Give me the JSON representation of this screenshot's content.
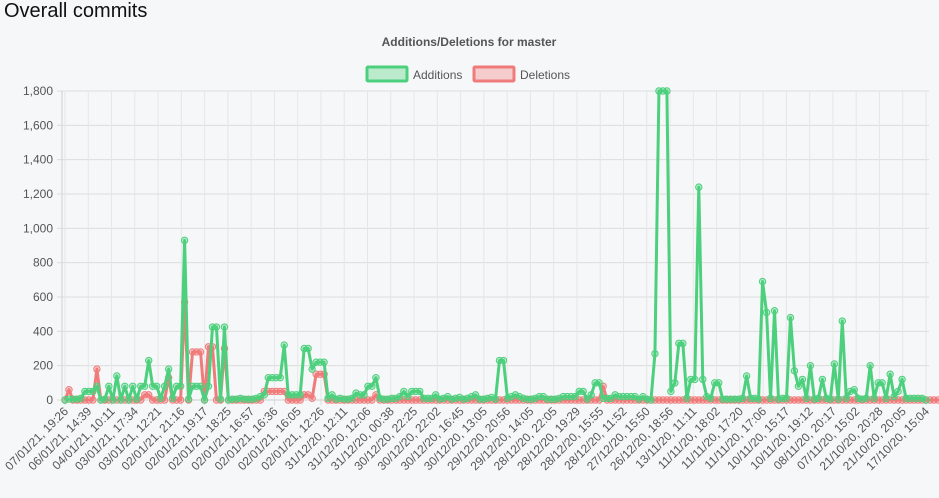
{
  "page": {
    "title": "Overall commits"
  },
  "chart_data": {
    "type": "line",
    "title": "Additions/Deletions for master",
    "xlabel": "",
    "ylabel": "",
    "ylim": [
      0,
      1800
    ],
    "yticks": [
      0,
      200,
      400,
      600,
      800,
      1000,
      1200,
      1400,
      1600,
      1800
    ],
    "yticklabels": [
      "0",
      "200",
      "400",
      "600",
      "800",
      "1,000",
      "1,200",
      "1,400",
      "1,600",
      "1,800"
    ],
    "grid": true,
    "legend": "top-center",
    "xticklabels": [
      "07/01/21, 19:26",
      "06/01/21, 14:39",
      "04/01/21, 10:11",
      "03/01/21, 17:34",
      "03/01/21, 12:21",
      "02/01/21, 21:16",
      "02/01/21, 19:17",
      "02/01/21, 18:25",
      "02/01/21, 16:57",
      "02/01/21, 16:36",
      "02/01/21, 16:05",
      "02/01/21, 12:26",
      "31/12/20, 12:11",
      "31/12/20, 12:06",
      "31/12/20, 00:38",
      "30/12/20, 22:25",
      "30/12/20, 22:02",
      "30/12/20, 16:45",
      "30/12/20, 13:05",
      "29/12/20, 20:56",
      "29/12/20, 14:05",
      "28/12/20, 22:05",
      "28/12/20, 19:29",
      "28/12/20, 15:55",
      "28/12/20, 11:52",
      "27/12/20, 15:50",
      "26/12/20, 18:56",
      "13/11/20, 11:11",
      "11/11/20, 18:02",
      "11/11/20, 17:20",
      "11/11/20, 17:06",
      "10/11/20, 15:17",
      "10/11/20, 19:12",
      "08/11/20, 20:17",
      "07/11/20, 15:02",
      "21/10/20, 20:28",
      "21/10/20, 20:05",
      "17/10/20, 15:04"
    ],
    "series": [
      {
        "name": "Additions",
        "color": "#4cd07d",
        "values": [
          0,
          5,
          5,
          5,
          10,
          50,
          50,
          50,
          80,
          0,
          5,
          80,
          0,
          140,
          0,
          80,
          0,
          80,
          5,
          80,
          80,
          230,
          80,
          80,
          10,
          80,
          180,
          10,
          80,
          80,
          930,
          5,
          80,
          80,
          80,
          0,
          80,
          425,
          425,
          5,
          425,
          0,
          5,
          5,
          10,
          5,
          5,
          5,
          10,
          20,
          30,
          130,
          130,
          130,
          130,
          320,
          30,
          30,
          30,
          30,
          300,
          300,
          180,
          220,
          220,
          220,
          10,
          30,
          5,
          10,
          5,
          5,
          10,
          40,
          30,
          30,
          80,
          80,
          130,
          10,
          5,
          5,
          10,
          10,
          20,
          50,
          20,
          50,
          50,
          50,
          10,
          10,
          10,
          30,
          5,
          10,
          20,
          5,
          10,
          15,
          5,
          10,
          20,
          30,
          5,
          5,
          10,
          15,
          5,
          230,
          230,
          10,
          20,
          30,
          20,
          10,
          5,
          5,
          10,
          20,
          20,
          5,
          5,
          5,
          10,
          20,
          20,
          20,
          20,
          50,
          50,
          5,
          30,
          100,
          100,
          10,
          10,
          10,
          30,
          20,
          20,
          20,
          20,
          20,
          5,
          20,
          5,
          0,
          270,
          1800,
          1800,
          1800,
          50,
          100,
          330,
          330,
          10,
          120,
          120,
          1240,
          120,
          20,
          10,
          100,
          100,
          5,
          5,
          5,
          5,
          5,
          10,
          140,
          10,
          10,
          5,
          690,
          510,
          10,
          520,
          5,
          10,
          10,
          480,
          170,
          80,
          120,
          10,
          200,
          5,
          10,
          120,
          10,
          5,
          210,
          5,
          460,
          10,
          50,
          60,
          10,
          5,
          10,
          200,
          10,
          100,
          100,
          10,
          150,
          20,
          50,
          120,
          10,
          10,
          10,
          10,
          10,
          0
        ]
      },
      {
        "name": "Deletions",
        "color": "#f07b7b",
        "values": [
          0,
          60,
          0,
          0,
          0,
          0,
          0,
          0,
          180,
          0,
          0,
          0,
          0,
          0,
          0,
          0,
          0,
          0,
          0,
          0,
          30,
          30,
          0,
          0,
          0,
          0,
          130,
          0,
          0,
          0,
          570,
          0,
          280,
          280,
          280,
          0,
          310,
          310,
          0,
          0,
          300,
          0,
          0,
          0,
          0,
          0,
          0,
          0,
          0,
          0,
          50,
          50,
          50,
          50,
          50,
          50,
          0,
          0,
          0,
          0,
          30,
          30,
          10,
          150,
          150,
          150,
          0,
          0,
          0,
          0,
          0,
          0,
          0,
          0,
          0,
          0,
          0,
          0,
          30,
          0,
          0,
          0,
          0,
          0,
          0,
          0,
          0,
          0,
          0,
          0,
          0,
          0,
          0,
          0,
          0,
          0,
          0,
          0,
          0,
          0,
          0,
          0,
          0,
          0,
          0,
          0,
          0,
          0,
          0,
          0,
          0,
          0,
          0,
          0,
          0,
          0,
          0,
          0,
          0,
          0,
          0,
          0,
          0,
          0,
          0,
          0,
          0,
          0,
          0,
          0,
          0,
          0,
          0,
          0,
          0,
          80,
          0,
          0,
          0,
          0,
          0,
          0,
          0,
          0,
          0,
          0,
          0,
          0,
          0,
          0,
          0,
          0,
          0,
          0,
          0,
          0,
          0,
          0,
          0,
          0,
          0,
          0,
          0,
          0,
          0,
          0,
          0,
          0,
          0,
          0,
          0,
          0,
          0,
          0,
          0,
          0,
          0,
          0,
          0,
          0,
          0,
          0,
          0,
          0,
          0,
          0,
          0,
          0,
          0,
          0,
          0,
          0,
          0,
          0,
          0,
          0,
          0,
          0,
          0,
          0,
          0,
          0,
          0,
          0,
          0,
          0,
          0,
          0,
          0,
          0,
          0,
          0,
          0,
          0,
          0,
          0,
          0,
          0,
          0,
          0,
          0,
          0,
          0,
          0,
          0,
          0,
          0,
          0,
          0,
          0,
          0,
          0,
          0,
          0,
          0
        ]
      }
    ]
  }
}
